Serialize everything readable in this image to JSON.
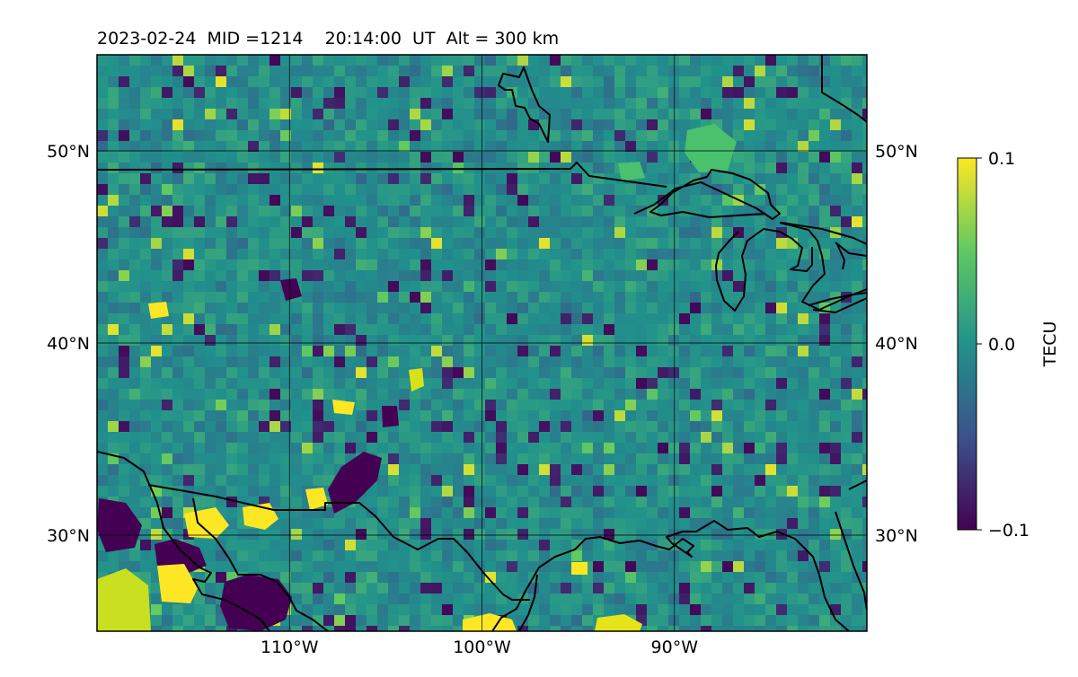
{
  "title": "2023-02-24  MID =1214    20:14:00  UT  Alt = 300 km",
  "map": {
    "lat_labels": [
      {
        "value": 50,
        "text": "50°N"
      },
      {
        "value": 40,
        "text": "40°N"
      },
      {
        "value": 30,
        "text": "30°N"
      }
    ],
    "lon_labels": [
      {
        "value": -110,
        "text": "110°W"
      },
      {
        "value": -100,
        "text": "100°W"
      },
      {
        "value": -90,
        "text": "90°W"
      }
    ],
    "lon_range": [
      -120,
      -80
    ],
    "lat_range": [
      25,
      55
    ],
    "gridlines": true,
    "land_outline_color": "#000000"
  },
  "colorbar": {
    "label": "TECU",
    "ticks": [
      {
        "value": 0.1,
        "text": "0.1"
      },
      {
        "value": 0.0,
        "text": "0.0"
      },
      {
        "value": -0.1,
        "text": "−0.1"
      }
    ],
    "range": [
      -0.1,
      0.1
    ],
    "colormap": "viridis",
    "colors": [
      "#440154",
      "#3b528b",
      "#21918c",
      "#5ec962",
      "#fde725"
    ]
  }
}
